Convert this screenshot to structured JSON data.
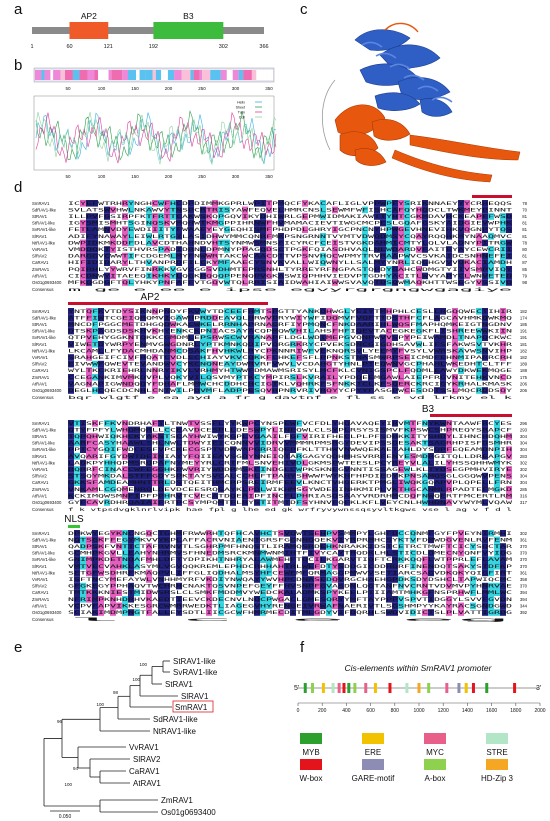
{
  "panels": {
    "a": {
      "letter": "a",
      "domains": [
        {
          "label": "AP2",
          "start": 60,
          "end": 121,
          "color": "#f05a28"
        },
        {
          "label": "B3",
          "start": 192,
          "end": 302,
          "color": "#3dbb3d"
        }
      ],
      "length": 366,
      "ticks": [
        "1",
        "60",
        "121",
        "192",
        "302",
        "366"
      ]
    },
    "b": {
      "letter": "b",
      "xticks": [
        "50",
        "100",
        "150",
        "200",
        "250",
        "300",
        "350"
      ],
      "legend": [
        "Helix",
        "Sheet",
        "Turn",
        "Coil"
      ]
    },
    "c": {
      "letter": "c"
    },
    "d": {
      "letter": "d",
      "species": [
        "SmRAV1",
        "SdRAV1-like",
        "StRAV1",
        "StRAV1-like",
        "SvRAV1-like",
        "SlRAV1",
        "NtRAV1-like",
        "VvRAV1",
        "SlRAV2",
        "CaRAV1",
        "ZmRAV1",
        "AtRAV1",
        "Os01g0693400"
      ],
      "consensus_label": "Consensus",
      "block_labels": [
        "AP2",
        "B3",
        "NLS"
      ],
      "blocks": [
        {
          "ends": [
            "78",
            "70",
            "81",
            "81",
            "81",
            "81",
            "78",
            "80",
            "81",
            "87",
            "85",
            "79",
            "98"
          ],
          "consensus": "m                                                 ge  e        ee e              ipse  egvyrgrgngwgagiye"
        },
        {
          "ends": [
            "182",
            "174",
            "185",
            "191",
            "191",
            "181",
            "182",
            "182",
            "189",
            "188",
            "175",
            "206",
            "206"
          ],
          "consensus": "bqr wlgtf  e  ea ayd a  fr g  davtnf      e  fl  ss e  vd lrkmy  el  k              "
        },
        {
          "ends": [
            "296",
            "293",
            "304",
            "304",
            "304",
            "283",
            "302",
            "302",
            "304",
            "304",
            "285",
            "316",
            "317"
          ],
          "consensus": "  f k vtpsdvgklnrlvipk hae  fpl       g  lhe ed  gk wrfryvywnssqsyvltkgws vse l   ag  v f      d  l"
        },
        {
          "ends": [
            "302",
            "361",
            "370",
            "370",
            "370",
            "370",
            "361",
            "358",
            "370",
            "394",
            "394",
            "344",
            "392"
          ],
          "consensus": "  l  c                                                               e         eg    "
        }
      ]
    },
    "e": {
      "letter": "e",
      "taxa": [
        "StRAV1-like",
        "SvRAV1-like",
        "StRAV1",
        "SlRAV1",
        "SmRAV1",
        "SdRAV1-like",
        "NtRAV1-like",
        "VvRAV1",
        "SlRAV2",
        "CaRAV1",
        "AtRAV1",
        "ZmRAV1",
        "Os01g0693400"
      ],
      "bootstraps": [
        "100",
        "100",
        "98",
        "100",
        "96",
        "94",
        "100"
      ],
      "scale": "0.050"
    },
    "f": {
      "letter": "f",
      "title": "Cis-elements within SmRAV1 promoter",
      "xticks": [
        "0",
        "200",
        "400",
        "600",
        "800",
        "1000",
        "1200",
        "1400",
        "1600",
        "1800",
        "2000"
      ],
      "five": "5'",
      "three": "3'",
      "legend": [
        {
          "label": "MYB",
          "color": "#2ca02c"
        },
        {
          "label": "ERE",
          "color": "#f2c200"
        },
        {
          "label": "MYC",
          "color": "#e8608a"
        },
        {
          "label": "STRE",
          "color": "#b3e6c6"
        },
        {
          "label": "W-box",
          "color": "#e3141b"
        },
        {
          "label": "GARE-motif",
          "color": "#8c8cb4"
        },
        {
          "label": "A-box",
          "color": "#8ed14e"
        },
        {
          "label": "HD-Zip 3",
          "color": "#f5a623"
        }
      ]
    }
  }
}
